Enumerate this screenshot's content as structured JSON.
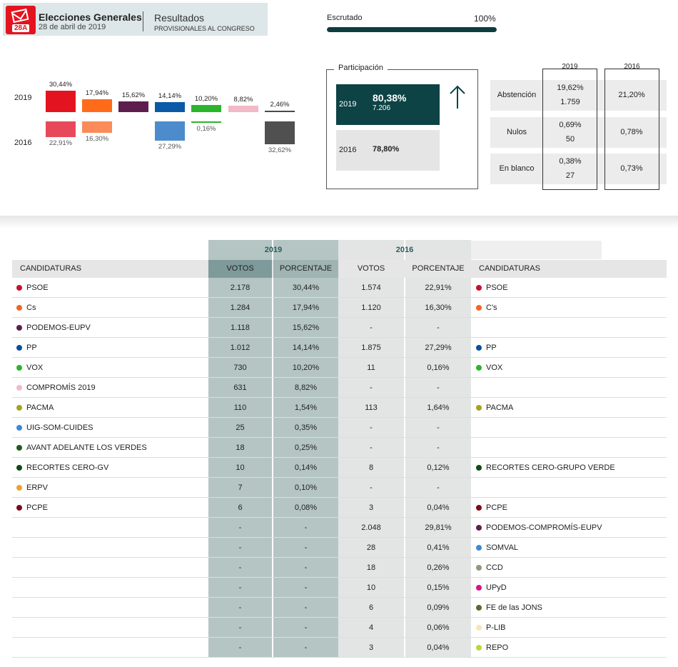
{
  "header": {
    "badge": "28A",
    "title": "Elecciones Generales",
    "date": "28 de abril de 2019",
    "results": "Resultados",
    "provisional": "PROVISIONALES AL CONGRESO"
  },
  "escrutado": {
    "label": "Escrutado",
    "value": "100%",
    "fraction": 1.0
  },
  "comparison": {
    "year_a": "2019",
    "year_b": "2016",
    "parties": [
      {
        "color": "#e3141f",
        "color16": "#e8495a",
        "label19": "30,44%",
        "v19": 30.44,
        "label16": "22,91%",
        "v16": 22.91
      },
      {
        "color": "#ff6b1a",
        "color16": "#fb8c5a",
        "label19": "17,94%",
        "v19": 17.94,
        "label16": "16,30%",
        "v16": 16.3
      },
      {
        "color": "#5d1e4e",
        "color16": "",
        "label19": "15,62%",
        "v19": 15.62,
        "label16": "",
        "v16": 0
      },
      {
        "color": "#0b5aa6",
        "color16": "#4c8ccc",
        "label19": "14,14%",
        "v19": 14.14,
        "label16": "27,29%",
        "v16": 27.29
      },
      {
        "color": "#2bb52b",
        "color16": "#2bb52b",
        "label19": "10,20%",
        "v19": 10.2,
        "label16": "0,16%",
        "v16": 0.16
      },
      {
        "color": "#f2b9c6",
        "color16": "",
        "label19": "8,82%",
        "v19": 8.82,
        "label16": "",
        "v16": 0
      },
      {
        "color": "#4a4a4a",
        "color16": "#505050",
        "label19": "2,46%",
        "v19": 2.46,
        "label16": "32,62%",
        "v16": 32.62
      }
    ]
  },
  "participacion": {
    "title": "Participación",
    "y2019": "2019",
    "v2019": "80,38%",
    "n2019": "7.206",
    "y2016": "2016",
    "v2016": "78,80%"
  },
  "abstention": {
    "col19": "2019",
    "col16": "2016",
    "rows": [
      {
        "label": "Abstención",
        "pct19": "19,62%",
        "n19": "1.759",
        "pct16": "21,20%"
      },
      {
        "label": "Nulos",
        "pct19": "0,69%",
        "n19": "50",
        "pct16": "0,78%"
      },
      {
        "label": "En blanco",
        "pct19": "0,38%",
        "n19": "27",
        "pct16": "0,73%"
      }
    ]
  },
  "table": {
    "year19": "2019",
    "year16": "2016",
    "h_cand": "CANDIDATURAS",
    "h_votos": "VOTOS",
    "h_pct": "PORCENTAJE",
    "rows": [
      {
        "c19": "#c8102e",
        "n19": "PSOE",
        "v19": "2.178",
        "p19": "30,44%",
        "v16": "1.574",
        "p16": "22,91%",
        "c16": "#c8102e",
        "n16": "PSOE"
      },
      {
        "c19": "#f26522",
        "n19": "Cs",
        "v19": "1.284",
        "p19": "17,94%",
        "v16": "1.120",
        "p16": "16,30%",
        "c16": "#f26522",
        "n16": "C's"
      },
      {
        "c19": "#5d1e4e",
        "n19": "PODEMOS-EUPV",
        "v19": "1.118",
        "p19": "15,62%",
        "v16": "-",
        "p16": "-",
        "c16": "",
        "n16": ""
      },
      {
        "c19": "#0b4f9c",
        "n19": "PP",
        "v19": "1.012",
        "p19": "14,14%",
        "v16": "1.875",
        "p16": "27,29%",
        "c16": "#0b4f9c",
        "n16": "PP"
      },
      {
        "c19": "#2bb52b",
        "n19": "VOX",
        "v19": "730",
        "p19": "10,20%",
        "v16": "11",
        "p16": "0,16%",
        "c16": "#2bb52b",
        "n16": "VOX"
      },
      {
        "c19": "#f2b9c6",
        "n19": "COMPROMÍS 2019",
        "v19": "631",
        "p19": "8,82%",
        "v16": "-",
        "p16": "-",
        "c16": "",
        "n16": ""
      },
      {
        "c19": "#a3a31f",
        "n19": "PACMA",
        "v19": "110",
        "p19": "1,54%",
        "v16": "113",
        "p16": "1,64%",
        "c16": "#a3a31f",
        "n16": "PACMA"
      },
      {
        "c19": "#3f88d8",
        "n19": "UIG-SOM-CUIDES",
        "v19": "25",
        "p19": "0,35%",
        "v16": "-",
        "p16": "-",
        "c16": "",
        "n16": ""
      },
      {
        "c19": "#1d5c1d",
        "n19": "AVANT ADELANTE LOS VERDES",
        "v19": "18",
        "p19": "0,25%",
        "v16": "-",
        "p16": "-",
        "c16": "",
        "n16": ""
      },
      {
        "c19": "#0f4a16",
        "n19": "RECORTES CERO-GV",
        "v19": "10",
        "p19": "0,14%",
        "v16": "8",
        "p16": "0,12%",
        "c16": "#0f4a16",
        "n16": "RECORTES CERO-GRUPO VERDE"
      },
      {
        "c19": "#f0a030",
        "n19": "ERPV",
        "v19": "7",
        "p19": "0,10%",
        "v16": "-",
        "p16": "-",
        "c16": "",
        "n16": ""
      },
      {
        "c19": "#7a0c1a",
        "n19": "PCPE",
        "v19": "6",
        "p19": "0,08%",
        "v16": "3",
        "p16": "0,04%",
        "c16": "#7a0c1a",
        "n16": "PCPE"
      },
      {
        "c19": "",
        "n19": "",
        "v19": "-",
        "p19": "-",
        "v16": "2.048",
        "p16": "29,81%",
        "c16": "#5d1e4e",
        "n16": "PODEMOS-COMPROMÍS-EUPV"
      },
      {
        "c19": "",
        "n19": "",
        "v19": "-",
        "p19": "-",
        "v16": "28",
        "p16": "0,41%",
        "c16": "#3f88d8",
        "n16": "SOMVAL"
      },
      {
        "c19": "",
        "n19": "",
        "v19": "-",
        "p19": "-",
        "v16": "18",
        "p16": "0,26%",
        "c16": "#8c9a7e",
        "n16": "CCD"
      },
      {
        "c19": "",
        "n19": "",
        "v19": "-",
        "p19": "-",
        "v16": "10",
        "p16": "0,15%",
        "c16": "#d1168c",
        "n16": "UPyD"
      },
      {
        "c19": "",
        "n19": "",
        "v19": "-",
        "p19": "-",
        "v16": "6",
        "p16": "0,09%",
        "c16": "#556b2f",
        "n16": "FE de las JONS"
      },
      {
        "c19": "",
        "n19": "",
        "v19": "-",
        "p19": "-",
        "v16": "4",
        "p16": "0,06%",
        "c16": "#f5e6b8",
        "n16": "P-LIB"
      },
      {
        "c19": "",
        "n19": "",
        "v19": "-",
        "p19": "-",
        "v16": "3",
        "p16": "0,04%",
        "c16": "#b8d640",
        "n16": "REPO"
      }
    ]
  }
}
